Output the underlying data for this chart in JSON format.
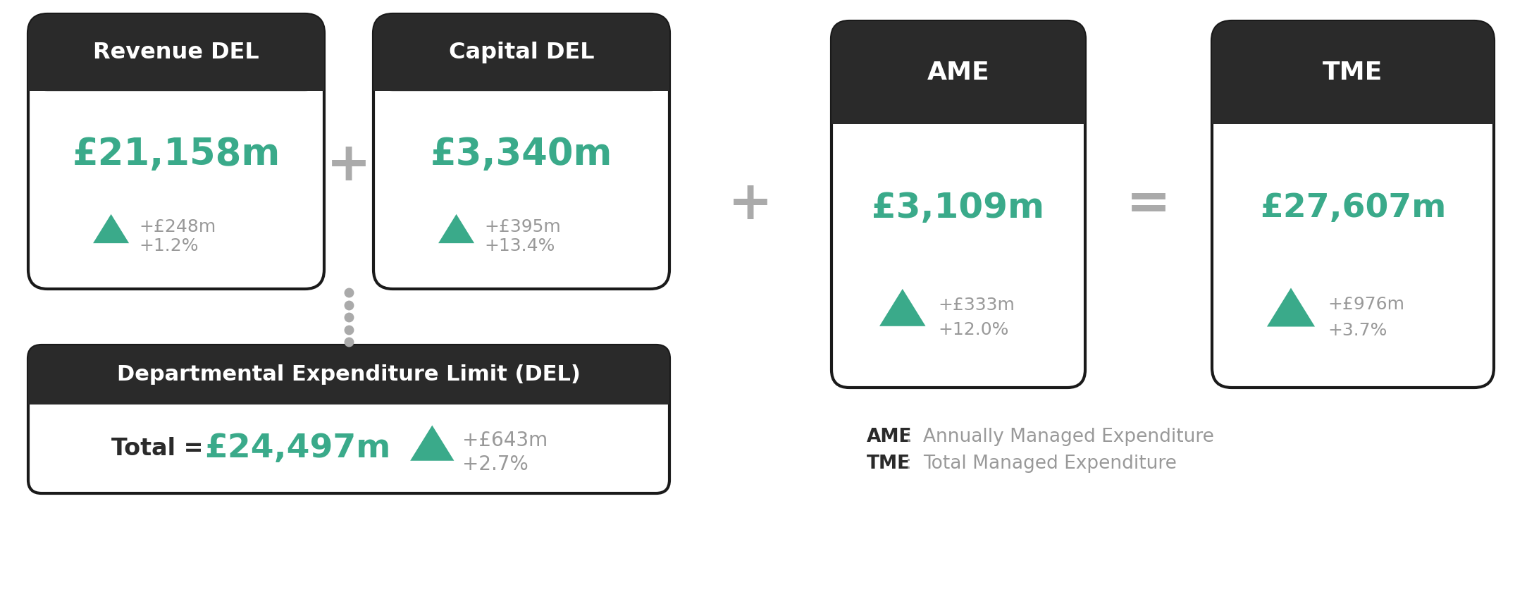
{
  "bg_color": "#ffffff",
  "dark_header_color": "#2a2a2a",
  "white_color": "#ffffff",
  "green_color": "#3aaa8a",
  "gray_text_color": "#999999",
  "dark_text_color": "#2a2a2a",
  "border_color": "#1a1a1a",
  "rev_del_title": "Revenue DEL",
  "rev_del_value": "£21,158m",
  "rev_del_change1": "+£248m",
  "rev_del_change2": "+1.2%",
  "cap_del_title": "Capital DEL",
  "cap_del_value": "£3,340m",
  "cap_del_change1": "+£395m",
  "cap_del_change2": "+13.4%",
  "del_title": "Departmental Expenditure Limit (DEL)",
  "del_label": "Total = ",
  "del_value": "£24,497m",
  "del_change1": "+£643m",
  "del_change2": "+2.7%",
  "ame_title": "AME",
  "ame_value": "£3,109m",
  "ame_change1": "+£333m",
  "ame_change2": "+12.0%",
  "tme_title": "TME",
  "tme_value": "£27,607m",
  "tme_change1": "+£976m",
  "tme_change2": "+3.7%",
  "legend_ame_bold": "AME",
  "legend_ame_text": "   Annually Managed Expenditure",
  "legend_tme_bold": "TME",
  "legend_tme_text": "   Total Managed Expenditure"
}
